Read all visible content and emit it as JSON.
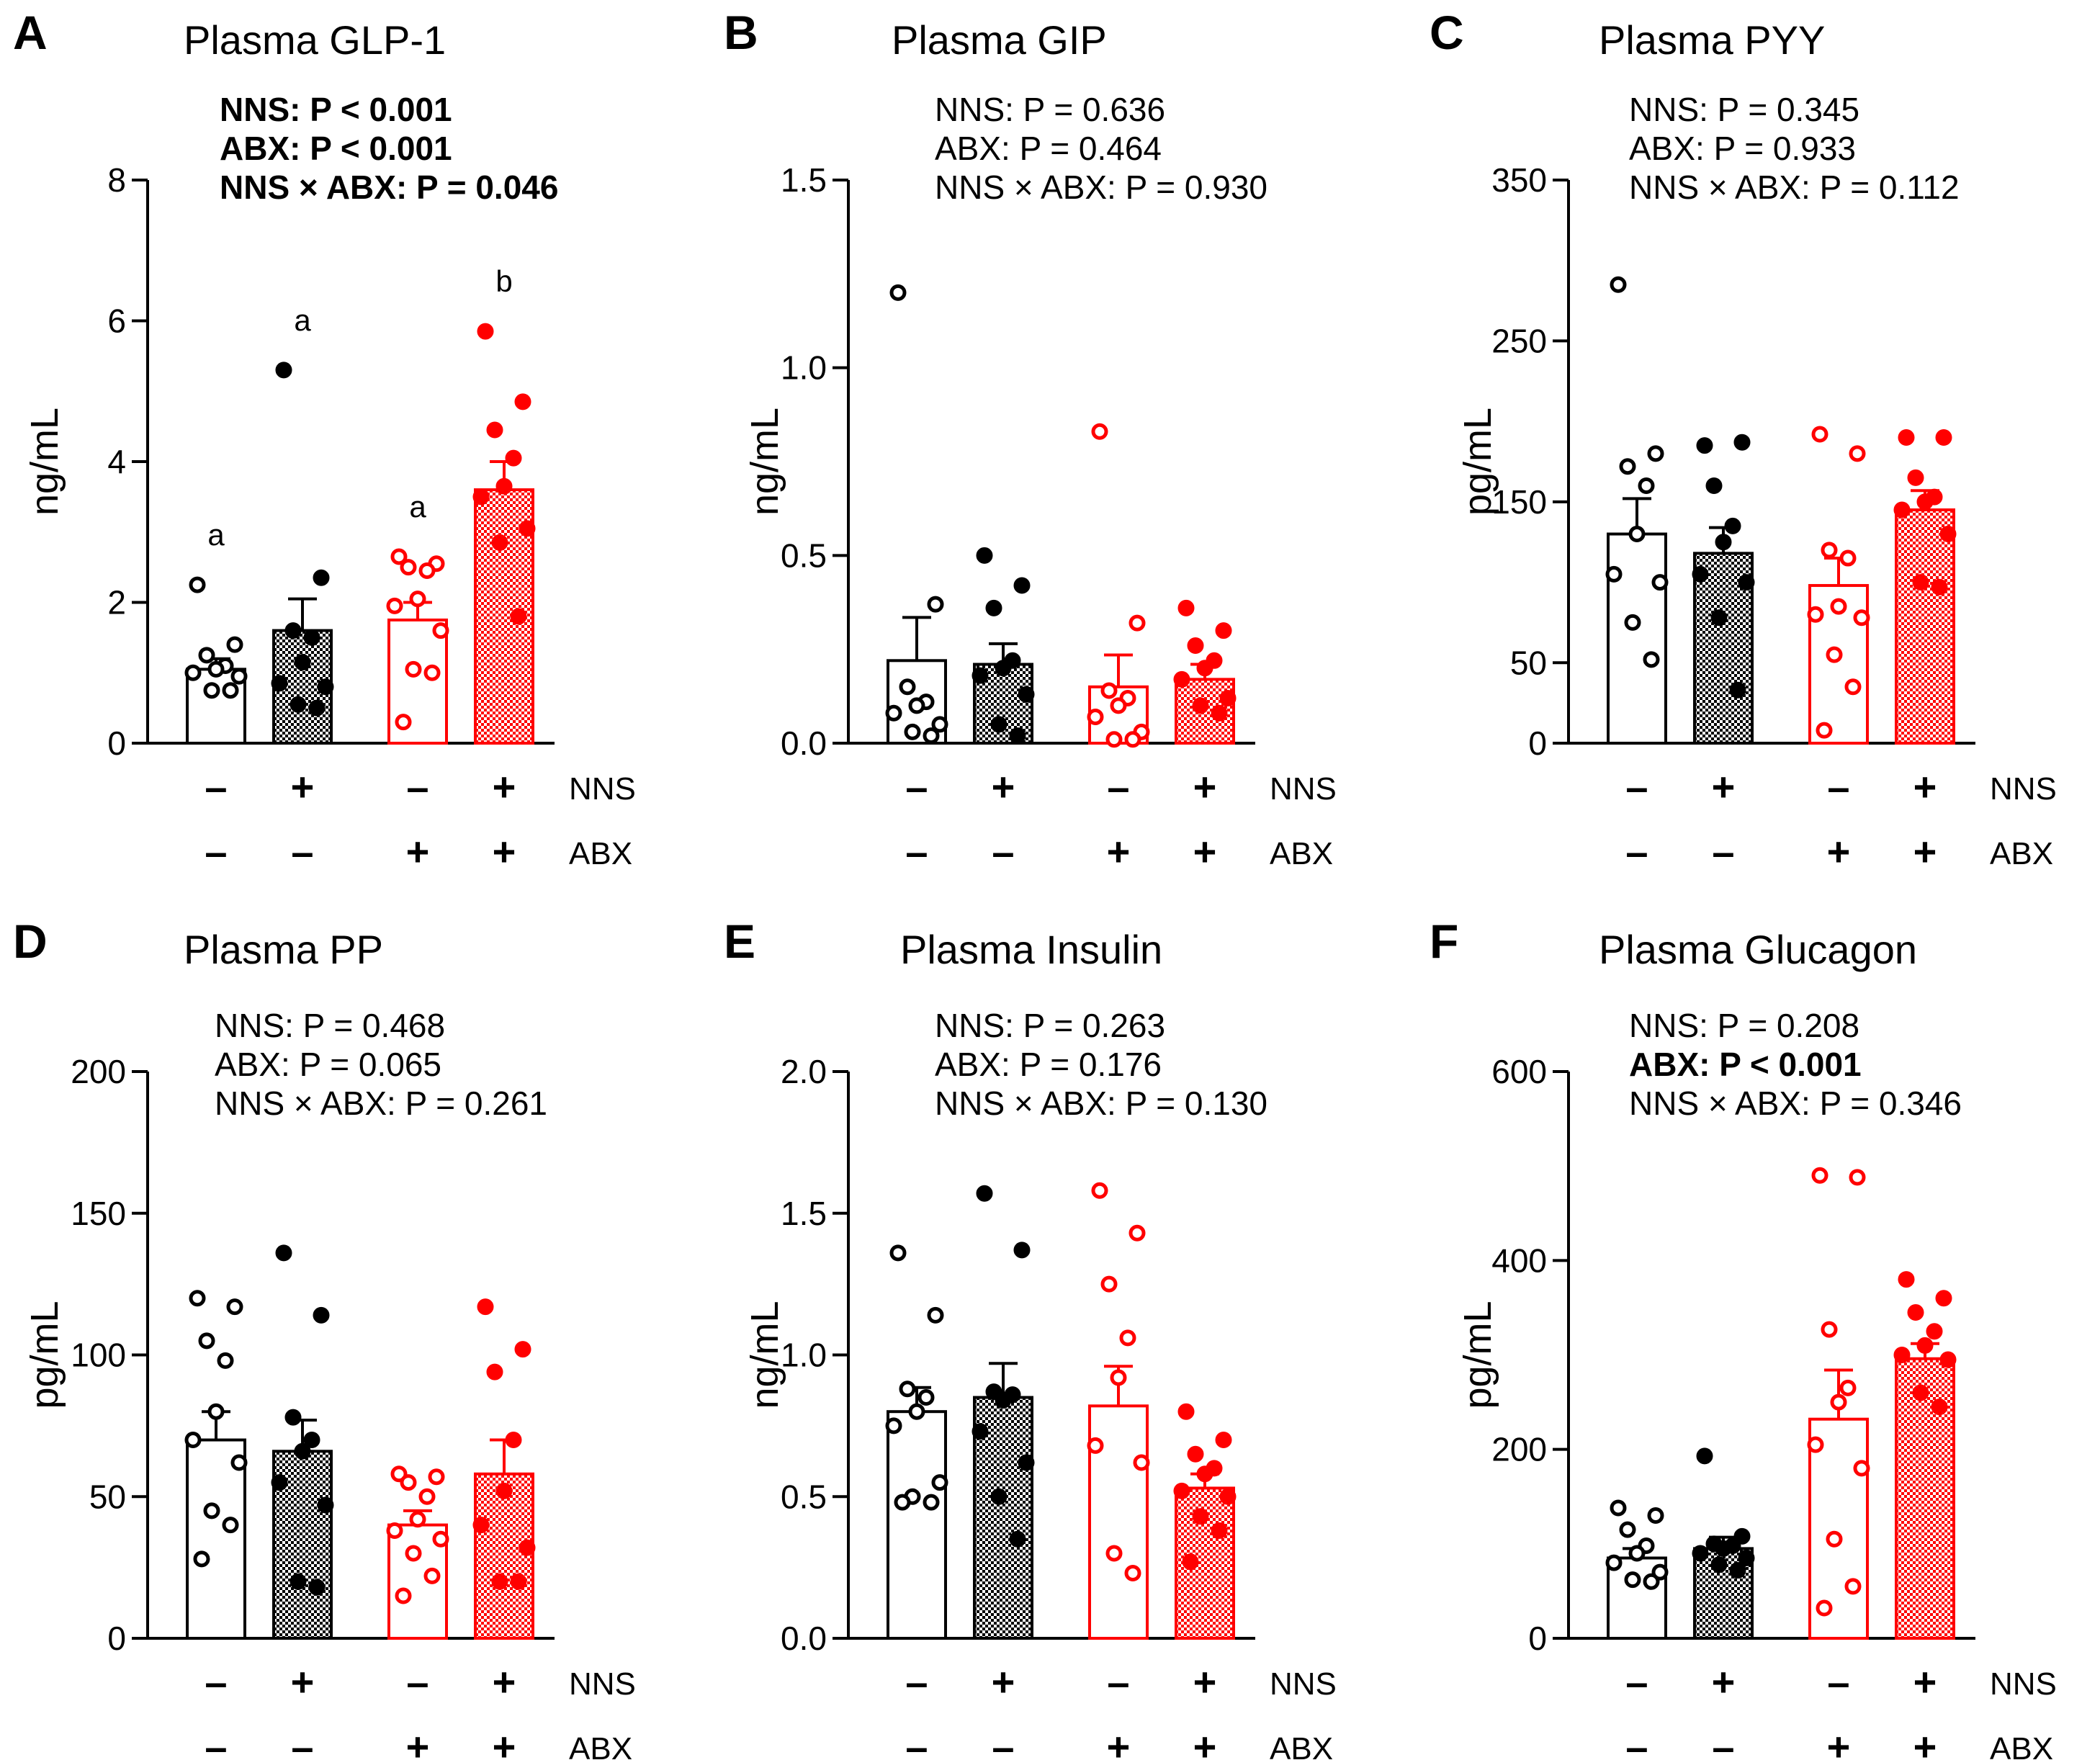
{
  "colors": {
    "black": "#000000",
    "red": "#ff0000"
  },
  "chart_data": [
    {
      "letter": "A",
      "title": "Plasma GLP-1",
      "type": "bar",
      "ylabel": "ng/mL",
      "ylim": [
        0,
        8
      ],
      "yticks": [
        "0",
        "2",
        "4",
        "6",
        "8"
      ],
      "ytick_values": [
        0,
        2,
        4,
        6,
        8
      ],
      "stats": [
        {
          "text": "NNS: P < 0.001",
          "bold": true
        },
        {
          "text": "ABX: P < 0.001",
          "bold": true
        },
        {
          "text": "NNS × ABX: P = 0.046",
          "bold": true
        }
      ],
      "groups": [
        {
          "nns": "–",
          "abx": "–",
          "mean": 1.05,
          "sem": 0.15,
          "letter": "a",
          "points": [
            2.25,
            1.4,
            1.25,
            1.1,
            1.05,
            1.0,
            0.95,
            0.75,
            0.75
          ]
        },
        {
          "nns": "+",
          "abx": "–",
          "mean": 1.6,
          "sem": 0.45,
          "letter": "a",
          "points": [
            5.3,
            2.35,
            1.6,
            1.5,
            1.15,
            0.85,
            0.8,
            0.55,
            0.5
          ]
        },
        {
          "nns": "–",
          "abx": "+",
          "mean": 1.75,
          "sem": 0.25,
          "letter": "a",
          "points": [
            2.65,
            2.55,
            2.5,
            2.45,
            2.05,
            1.95,
            1.6,
            1.05,
            1.0,
            0.3
          ]
        },
        {
          "nns": "+",
          "abx": "+",
          "mean": 3.6,
          "sem": 0.4,
          "letter": "b",
          "points": [
            5.85,
            4.85,
            4.45,
            4.05,
            3.65,
            3.5,
            3.05,
            2.85,
            1.8
          ]
        }
      ],
      "row_labels": [
        "NNS",
        "ABX"
      ]
    },
    {
      "letter": "B",
      "title": "Plasma GIP",
      "type": "bar",
      "ylabel": "ng/mL",
      "ylim": [
        0,
        1.5
      ],
      "yticks": [
        "0.0",
        "0.5",
        "1.0",
        "1.5"
      ],
      "ytick_values": [
        0,
        0.5,
        1.0,
        1.5
      ],
      "stats": [
        {
          "text": "NNS: P = 0.636",
          "bold": false
        },
        {
          "text": "ABX: P = 0.464",
          "bold": false
        },
        {
          "text": "NNS × ABX: P = 0.930",
          "bold": false
        }
      ],
      "groups": [
        {
          "nns": "–",
          "abx": "–",
          "mean": 0.22,
          "sem": 0.115,
          "letter": "",
          "points": [
            1.2,
            0.37,
            0.15,
            0.11,
            0.1,
            0.08,
            0.05,
            0.03,
            0.02
          ]
        },
        {
          "nns": "+",
          "abx": "–",
          "mean": 0.21,
          "sem": 0.055,
          "letter": "",
          "points": [
            0.5,
            0.42,
            0.36,
            0.22,
            0.2,
            0.18,
            0.13,
            0.05,
            0.02
          ]
        },
        {
          "nns": "–",
          "abx": "+",
          "mean": 0.15,
          "sem": 0.085,
          "letter": "",
          "points": [
            0.83,
            0.32,
            0.14,
            0.12,
            0.1,
            0.07,
            0.03,
            0.01,
            0.01
          ]
        },
        {
          "nns": "+",
          "abx": "+",
          "mean": 0.17,
          "sem": 0.04,
          "letter": "",
          "points": [
            0.36,
            0.3,
            0.26,
            0.22,
            0.2,
            0.17,
            0.12,
            0.1,
            0.08
          ]
        }
      ],
      "row_labels": [
        "NNS",
        "ABX"
      ]
    },
    {
      "letter": "C",
      "title": "Plasma PYY",
      "type": "bar",
      "ylabel": "pg/mL",
      "ylim": [
        0,
        350
      ],
      "yticks": [
        "0",
        "50",
        "150",
        "250",
        "350"
      ],
      "ytick_values": [
        0,
        50,
        150,
        250,
        350
      ],
      "stats": [
        {
          "text": "NNS: P = 0.345",
          "bold": false
        },
        {
          "text": "ABX: P = 0.933",
          "bold": false
        },
        {
          "text": "NNS × ABX: P = 0.112",
          "bold": false
        }
      ],
      "groups": [
        {
          "nns": "–",
          "abx": "–",
          "mean": 130,
          "sem": 22,
          "letter": "",
          "points": [
            285,
            180,
            172,
            160,
            130,
            105,
            100,
            75,
            52
          ]
        },
        {
          "nns": "+",
          "abx": "–",
          "mean": 118,
          "sem": 16,
          "letter": "",
          "points": [
            185,
            187,
            160,
            135,
            125,
            105,
            100,
            78,
            33
          ]
        },
        {
          "nns": "–",
          "abx": "+",
          "mean": 98,
          "sem": 17,
          "letter": "",
          "points": [
            192,
            180,
            120,
            115,
            85,
            80,
            78,
            55,
            35,
            8
          ]
        },
        {
          "nns": "+",
          "abx": "+",
          "mean": 145,
          "sem": 12,
          "letter": "",
          "points": [
            190,
            190,
            165,
            153,
            150,
            145,
            130,
            100,
            97
          ]
        }
      ],
      "row_labels": [
        "NNS",
        "ABX"
      ]
    },
    {
      "letter": "D",
      "title": "Plasma PP",
      "type": "bar",
      "ylabel": "pg/mL",
      "ylim": [
        0,
        200
      ],
      "yticks": [
        "0",
        "50",
        "100",
        "150",
        "200"
      ],
      "ytick_values": [
        0,
        50,
        100,
        150,
        200
      ],
      "stats": [
        {
          "text": "NNS: P = 0.468",
          "bold": false
        },
        {
          "text": "ABX: P = 0.065",
          "bold": false
        },
        {
          "text": "NNS × ABX: P = 0.261",
          "bold": false
        }
      ],
      "groups": [
        {
          "nns": "–",
          "abx": "–",
          "mean": 70,
          "sem": 10,
          "letter": "",
          "points": [
            120,
            117,
            105,
            98,
            80,
            70,
            62,
            45,
            40,
            28
          ]
        },
        {
          "nns": "+",
          "abx": "–",
          "mean": 66,
          "sem": 11,
          "letter": "",
          "points": [
            136,
            114,
            78,
            70,
            66,
            55,
            47,
            20,
            18
          ]
        },
        {
          "nns": "–",
          "abx": "+",
          "mean": 40,
          "sem": 5,
          "letter": "",
          "points": [
            58,
            57,
            55,
            50,
            42,
            38,
            35,
            30,
            22,
            15
          ]
        },
        {
          "nns": "+",
          "abx": "+",
          "mean": 58,
          "sem": 12,
          "letter": "",
          "points": [
            117,
            102,
            94,
            70,
            52,
            40,
            32,
            20,
            20
          ]
        }
      ],
      "row_labels": [
        "NNS",
        "ABX"
      ]
    },
    {
      "letter": "E",
      "title": "Plasma Insulin",
      "type": "bar",
      "ylabel": "ng/mL",
      "ylim": [
        0,
        2.0
      ],
      "yticks": [
        "0.0",
        "0.5",
        "1.0",
        "1.5",
        "2.0"
      ],
      "ytick_values": [
        0,
        0.5,
        1.0,
        1.5,
        2.0
      ],
      "stats": [
        {
          "text": "NNS: P = 0.263",
          "bold": false
        },
        {
          "text": "ABX: P = 0.176",
          "bold": false
        },
        {
          "text": "NNS × ABX: P = 0.130",
          "bold": false
        }
      ],
      "groups": [
        {
          "nns": "–",
          "abx": "–",
          "mean": 0.8,
          "sem": 0.085,
          "letter": "",
          "points": [
            1.36,
            1.14,
            0.88,
            0.85,
            0.8,
            0.75,
            0.55,
            0.5,
            0.48,
            0.48
          ]
        },
        {
          "nns": "+",
          "abx": "–",
          "mean": 0.85,
          "sem": 0.12,
          "letter": "",
          "points": [
            1.57,
            1.37,
            0.87,
            0.86,
            0.84,
            0.73,
            0.62,
            0.5,
            0.35
          ]
        },
        {
          "nns": "–",
          "abx": "+",
          "mean": 0.82,
          "sem": 0.14,
          "letter": "",
          "points": [
            1.58,
            1.43,
            1.25,
            1.06,
            0.92,
            0.68,
            0.62,
            0.3,
            0.23
          ]
        },
        {
          "nns": "+",
          "abx": "+",
          "mean": 0.53,
          "sem": 0.05,
          "letter": "",
          "points": [
            0.8,
            0.7,
            0.65,
            0.6,
            0.58,
            0.52,
            0.5,
            0.43,
            0.38,
            0.27
          ]
        }
      ],
      "row_labels": [
        "NNS",
        "ABX"
      ]
    },
    {
      "letter": "F",
      "title": "Plasma Glucagon",
      "type": "bar",
      "ylabel": "pg/mL",
      "ylim": [
        0,
        600
      ],
      "yticks": [
        "0",
        "200",
        "400",
        "600"
      ],
      "ytick_values": [
        0,
        200,
        400,
        600
      ],
      "stats": [
        {
          "text": "NNS: P = 0.208",
          "bold": false
        },
        {
          "text": "ABX: P < 0.001",
          "bold": true
        },
        {
          "text": "NNS × ABX: P = 0.346",
          "bold": false
        }
      ],
      "groups": [
        {
          "nns": "–",
          "abx": "–",
          "mean": 85,
          "sem": 10,
          "letter": "",
          "points": [
            138,
            130,
            115,
            98,
            90,
            80,
            70,
            62,
            60
          ]
        },
        {
          "nns": "+",
          "abx": "–",
          "mean": 95,
          "sem": 12,
          "letter": "",
          "points": [
            193,
            108,
            100,
            98,
            95,
            90,
            85,
            78,
            72
          ]
        },
        {
          "nns": "–",
          "abx": "+",
          "mean": 232,
          "sem": 52,
          "letter": "",
          "points": [
            490,
            488,
            327,
            265,
            250,
            205,
            180,
            105,
            55,
            32
          ]
        },
        {
          "nns": "+",
          "abx": "+",
          "mean": 296,
          "sem": 16,
          "letter": "",
          "points": [
            380,
            360,
            345,
            325,
            310,
            300,
            295,
            260,
            245
          ]
        }
      ],
      "row_labels": [
        "NNS",
        "ABX"
      ]
    }
  ]
}
